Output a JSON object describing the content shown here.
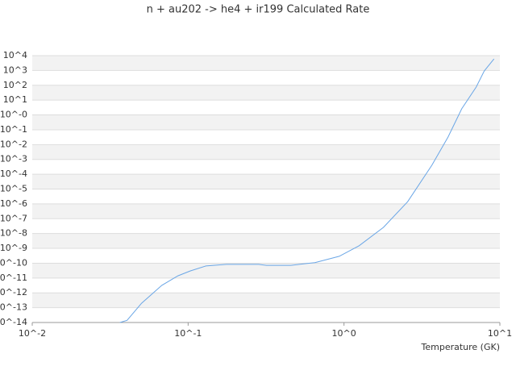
{
  "chart_data": {
    "type": "line",
    "title": "n + au202 -> he4 + ir199 Calculated Rate",
    "x_label": "Temperature (GK)",
    "xscale": "log",
    "yscale": "log",
    "grid": true,
    "xlim": [
      0.01,
      10
    ],
    "xticks": [
      {
        "value": 0.01,
        "label": "10^-2"
      },
      {
        "value": 0.1,
        "label": "10^-1"
      },
      {
        "value": 1,
        "label": "10^0"
      },
      {
        "value": 10,
        "label": "10^1"
      }
    ],
    "ylim": [
      1e-14,
      10000
    ],
    "yticks": [
      {
        "value": 10000,
        "label": "10^4"
      },
      {
        "value": 1000,
        "label": "10^3"
      },
      {
        "value": 100,
        "label": "10^2"
      },
      {
        "value": 10,
        "label": "10^1"
      },
      {
        "value": 1,
        "label": "10^-0"
      },
      {
        "value": 0.1,
        "label": "10^-1"
      },
      {
        "value": 0.01,
        "label": "10^-2"
      },
      {
        "value": 0.001,
        "label": "10^-3"
      },
      {
        "value": 0.0001,
        "label": "10^-4"
      },
      {
        "value": 1e-05,
        "label": "10^-5"
      },
      {
        "value": 1e-06,
        "label": "10^-6"
      },
      {
        "value": 1e-07,
        "label": "10^-7"
      },
      {
        "value": 1e-08,
        "label": "10^-8"
      },
      {
        "value": 1e-09,
        "label": "10^-9"
      },
      {
        "value": 1e-10,
        "label": "10^-10"
      },
      {
        "value": 1e-11,
        "label": "10^-11"
      },
      {
        "value": 1e-12,
        "label": "10^-12"
      },
      {
        "value": 1e-13,
        "label": "10^-13"
      },
      {
        "value": 1e-14,
        "label": "10^-14"
      }
    ],
    "x": [
      0.0365,
      0.0406,
      0.0503,
      0.0678,
      0.086,
      0.103,
      0.13,
      0.176,
      0.283,
      0.318,
      0.456,
      0.651,
      0.931,
      1.25,
      1.79,
      2.56,
      3.66,
      4.65,
      5.69,
      7.05,
      7.94,
      9.17
    ],
    "series": [
      {
        "color": "#6aa6e6",
        "values": [
          1e-14,
          1.4e-14,
          2e-13,
          3.2e-12,
          1.4e-11,
          3e-11,
          6.5e-11,
          8.3e-11,
          8.3e-11,
          7.2e-11,
          7.2e-11,
          1.1e-10,
          2.9e-10,
          1.5e-09,
          2.6e-08,
          1.4e-06,
          0.0004,
          0.032,
          2.6,
          76,
          930,
          6000
        ]
      }
    ]
  }
}
